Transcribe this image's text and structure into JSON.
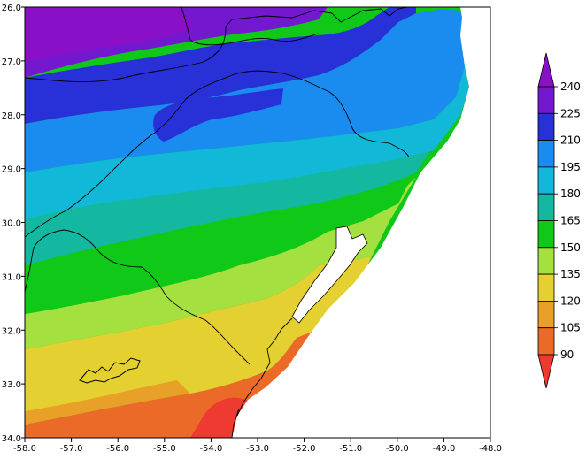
{
  "map": {
    "x_ticks": [
      "-58.0",
      "-57.0",
      "-56.0",
      "-55.0",
      "-54.0",
      "-53.0",
      "-52.0",
      "-51.0",
      "-50.0",
      "-49.0",
      "-48.0"
    ],
    "y_ticks": [
      "26.0",
      "27.0",
      "28.0",
      "29.0",
      "30.0",
      "31.0",
      "32.0",
      "33.0",
      "34.0"
    ],
    "lon_range": [
      -58.0,
      -48.0
    ],
    "lat_range": [
      26.0,
      34.0
    ]
  },
  "colorbar": {
    "labels": [
      "240",
      "225",
      "210",
      "195",
      "180",
      "165",
      "150",
      "135",
      "120",
      "105",
      "90"
    ],
    "colors": {
      "above_240": "#8a10c8",
      "225_240": "#7418d0",
      "210_225": "#2830d8",
      "195_210": "#1a8cf0",
      "180_195": "#12b8d8",
      "165_180": "#14b8a0",
      "150_165": "#10c818",
      "135_150": "#a4e040",
      "120_135": "#e4d030",
      "105_120": "#e8a028",
      "90_105": "#ec6a28",
      "below_90": "#ee3a30"
    }
  }
}
